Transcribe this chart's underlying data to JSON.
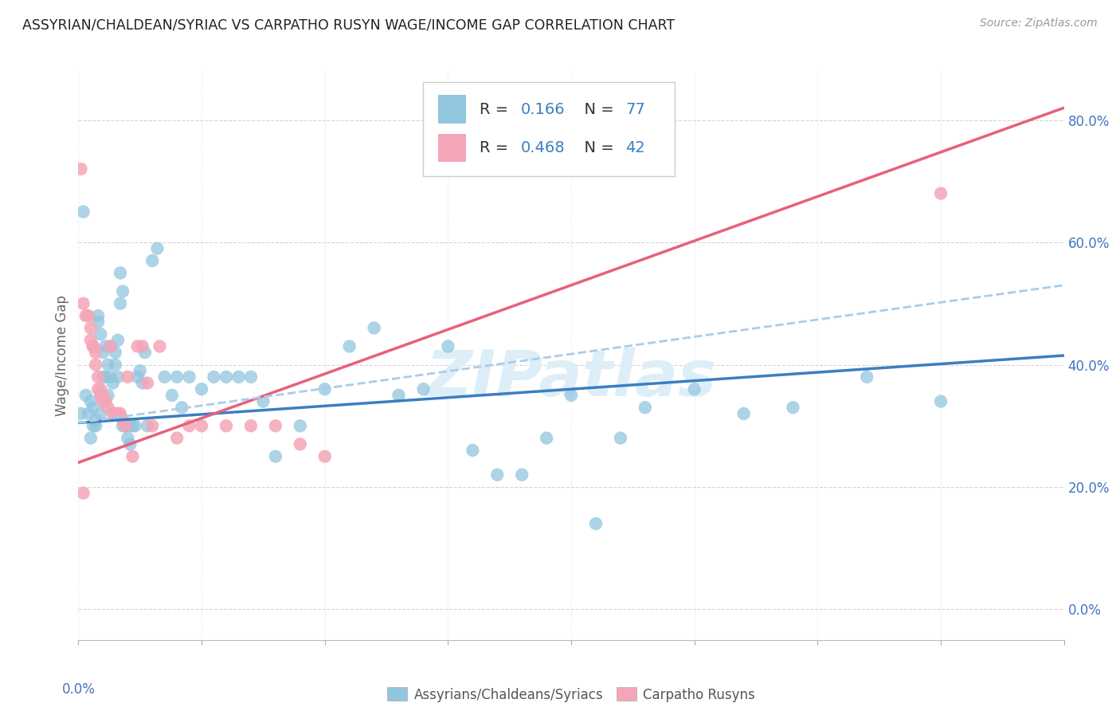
{
  "title": "ASSYRIAN/CHALDEAN/SYRIAC VS CARPATHO RUSYN WAGE/INCOME GAP CORRELATION CHART",
  "source": "Source: ZipAtlas.com",
  "ylabel": "Wage/Income Gap",
  "xlim": [
    0.0,
    0.4
  ],
  "ylim": [
    -0.05,
    0.88
  ],
  "yticks": [
    0.0,
    0.2,
    0.4,
    0.6,
    0.8
  ],
  "ytick_labels": [
    "0.0%",
    "20.0%",
    "40.0%",
    "60.0%",
    "80.0%"
  ],
  "xticks": [
    0.0,
    0.05,
    0.1,
    0.15,
    0.2,
    0.25,
    0.3,
    0.35,
    0.4
  ],
  "blue_color": "#92c5de",
  "pink_color": "#f4a6b8",
  "trend_blue": "#3a7fc1",
  "trend_pink": "#e8607a",
  "dashed_color": "#aacce8",
  "watermark": "ZIPatlas",
  "watermark_color": "#ddeef8",
  "blue_scatter_x": [
    0.001,
    0.002,
    0.003,
    0.004,
    0.005,
    0.005,
    0.006,
    0.006,
    0.007,
    0.007,
    0.008,
    0.008,
    0.009,
    0.009,
    0.009,
    0.01,
    0.01,
    0.011,
    0.011,
    0.012,
    0.012,
    0.013,
    0.013,
    0.014,
    0.015,
    0.015,
    0.016,
    0.016,
    0.017,
    0.017,
    0.018,
    0.018,
    0.019,
    0.02,
    0.02,
    0.021,
    0.022,
    0.023,
    0.024,
    0.025,
    0.026,
    0.027,
    0.028,
    0.03,
    0.032,
    0.035,
    0.038,
    0.04,
    0.042,
    0.045,
    0.05,
    0.055,
    0.06,
    0.065,
    0.07,
    0.075,
    0.08,
    0.09,
    0.1,
    0.11,
    0.12,
    0.13,
    0.14,
    0.15,
    0.16,
    0.17,
    0.18,
    0.19,
    0.2,
    0.21,
    0.22,
    0.23,
    0.25,
    0.27,
    0.29,
    0.32,
    0.35
  ],
  "blue_scatter_y": [
    0.32,
    0.65,
    0.35,
    0.32,
    0.28,
    0.34,
    0.3,
    0.33,
    0.3,
    0.31,
    0.48,
    0.47,
    0.45,
    0.35,
    0.32,
    0.42,
    0.38,
    0.43,
    0.38,
    0.4,
    0.35,
    0.43,
    0.38,
    0.37,
    0.42,
    0.4,
    0.44,
    0.38,
    0.55,
    0.5,
    0.52,
    0.3,
    0.3,
    0.3,
    0.28,
    0.27,
    0.3,
    0.3,
    0.38,
    0.39,
    0.37,
    0.42,
    0.3,
    0.57,
    0.59,
    0.38,
    0.35,
    0.38,
    0.33,
    0.38,
    0.36,
    0.38,
    0.38,
    0.38,
    0.38,
    0.34,
    0.25,
    0.3,
    0.36,
    0.43,
    0.46,
    0.35,
    0.36,
    0.43,
    0.26,
    0.22,
    0.22,
    0.28,
    0.35,
    0.14,
    0.28,
    0.33,
    0.36,
    0.32,
    0.33,
    0.38,
    0.34
  ],
  "pink_scatter_x": [
    0.001,
    0.002,
    0.003,
    0.004,
    0.005,
    0.005,
    0.006,
    0.006,
    0.007,
    0.007,
    0.008,
    0.008,
    0.009,
    0.009,
    0.01,
    0.01,
    0.011,
    0.012,
    0.013,
    0.014,
    0.015,
    0.016,
    0.017,
    0.018,
    0.019,
    0.02,
    0.022,
    0.024,
    0.026,
    0.028,
    0.03,
    0.033,
    0.04,
    0.045,
    0.05,
    0.06,
    0.07,
    0.08,
    0.09,
    0.1,
    0.35,
    0.002
  ],
  "pink_scatter_y": [
    0.72,
    0.5,
    0.48,
    0.48,
    0.46,
    0.44,
    0.43,
    0.43,
    0.42,
    0.4,
    0.38,
    0.36,
    0.36,
    0.35,
    0.35,
    0.34,
    0.34,
    0.33,
    0.43,
    0.32,
    0.32,
    0.32,
    0.32,
    0.31,
    0.3,
    0.38,
    0.25,
    0.43,
    0.43,
    0.37,
    0.3,
    0.43,
    0.28,
    0.3,
    0.3,
    0.3,
    0.3,
    0.3,
    0.27,
    0.25,
    0.68,
    0.19
  ],
  "blue_trend_x": [
    0.0,
    0.4
  ],
  "blue_trend_y": [
    0.305,
    0.415
  ],
  "pink_trend_x": [
    0.0,
    0.4
  ],
  "pink_trend_y": [
    0.24,
    0.82
  ],
  "dashed_trend_x": [
    0.0,
    0.4
  ],
  "dashed_trend_y": [
    0.305,
    0.53
  ],
  "background_color": "#ffffff",
  "grid_color": "#d0d0d0",
  "axis_label_color": "#4472c4",
  "ylabel_color": "#666666"
}
